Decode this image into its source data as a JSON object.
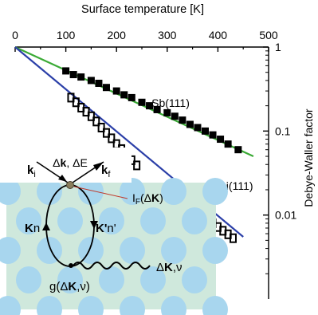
{
  "chart_data": {
    "type": "scatter",
    "title": "",
    "xlabel": "Surface temperature [K]",
    "ylabel": "Debye-Waller factor",
    "x_axis_position": "top",
    "y_axis_position": "right",
    "y_scale": "log",
    "xlim": [
      0,
      500
    ],
    "ylim": [
      0.001,
      1
    ],
    "x_ticks": [
      "0",
      "100",
      "200",
      "300",
      "400",
      "500"
    ],
    "y_ticks": [
      "1",
      "0.1",
      "0.01"
    ],
    "grid": false,
    "series": [
      {
        "name": "Sb(111)",
        "marker": "filled-square",
        "color": "#000000",
        "fit_color": "#3aaa35",
        "fit": {
          "x": [
            0,
            470
          ],
          "y": [
            1,
            0.05
          ]
        },
        "points": [
          {
            "x": 100,
            "y": 0.52
          },
          {
            "x": 115,
            "y": 0.47
          },
          {
            "x": 130,
            "y": 0.44
          },
          {
            "x": 150,
            "y": 0.4
          },
          {
            "x": 165,
            "y": 0.37
          },
          {
            "x": 180,
            "y": 0.33
          },
          {
            "x": 200,
            "y": 0.3
          },
          {
            "x": 215,
            "y": 0.27
          },
          {
            "x": 230,
            "y": 0.25
          },
          {
            "x": 250,
            "y": 0.22
          },
          {
            "x": 265,
            "y": 0.2
          },
          {
            "x": 280,
            "y": 0.18
          },
          {
            "x": 300,
            "y": 0.165
          },
          {
            "x": 315,
            "y": 0.15
          },
          {
            "x": 330,
            "y": 0.135
          },
          {
            "x": 345,
            "y": 0.12
          },
          {
            "x": 360,
            "y": 0.11
          },
          {
            "x": 375,
            "y": 0.1
          },
          {
            "x": 390,
            "y": 0.09
          },
          {
            "x": 405,
            "y": 0.08
          },
          {
            "x": 420,
            "y": 0.07
          },
          {
            "x": 440,
            "y": 0.06
          }
        ]
      },
      {
        "name": "Bi(111)",
        "marker": "open-square",
        "color": "#000000",
        "fit_color": "#2b3fa8",
        "fit": {
          "x": [
            0,
            450
          ],
          "y": [
            1,
            0.0055
          ]
        },
        "points": [
          {
            "x": 110,
            "y": 0.25
          },
          {
            "x": 120,
            "y": 0.22
          },
          {
            "x": 130,
            "y": 0.19
          },
          {
            "x": 140,
            "y": 0.17
          },
          {
            "x": 150,
            "y": 0.15
          },
          {
            "x": 160,
            "y": 0.13
          },
          {
            "x": 170,
            "y": 0.11
          },
          {
            "x": 180,
            "y": 0.095
          },
          {
            "x": 190,
            "y": 0.082
          },
          {
            "x": 200,
            "y": 0.07
          },
          {
            "x": 210,
            "y": 0.061
          },
          {
            "x": 220,
            "y": 0.052
          },
          {
            "x": 230,
            "y": 0.045
          },
          {
            "x": 240,
            "y": 0.039
          },
          {
            "x": 370,
            "y": 0.0098
          },
          {
            "x": 380,
            "y": 0.0089
          },
          {
            "x": 390,
            "y": 0.008
          },
          {
            "x": 400,
            "y": 0.0072
          },
          {
            "x": 410,
            "y": 0.0065
          },
          {
            "x": 420,
            "y": 0.0059
          },
          {
            "x": 430,
            "y": 0.0053
          }
        ]
      }
    ],
    "inset": {
      "background": "#cfe8dc",
      "dot_color": "#a8d6ee",
      "line_color": "#000000",
      "indicator_color": "#c0392b",
      "labels": {
        "delta_top": "Δ",
        "k_top": "k",
        "sep": ", ",
        "delta_e": "ΔE",
        "ki_main": "k",
        "ki_sub": "i",
        "kf_main": "k",
        "kf_sub": "f",
        "if_main": "I",
        "if_sub": "F",
        "if_open": "(Δ",
        "if_k": "K",
        "if_close": ")",
        "kn_main": "K",
        "kn_rest": "n",
        "kpn_main": "K'",
        "kpn_rest": "n'",
        "phonon_delta": "Δ",
        "phonon_k": "K",
        "phonon_nu": ",ν",
        "g_open": "g(Δ",
        "g_k": "K",
        "g_close": ",ν)"
      }
    }
  }
}
